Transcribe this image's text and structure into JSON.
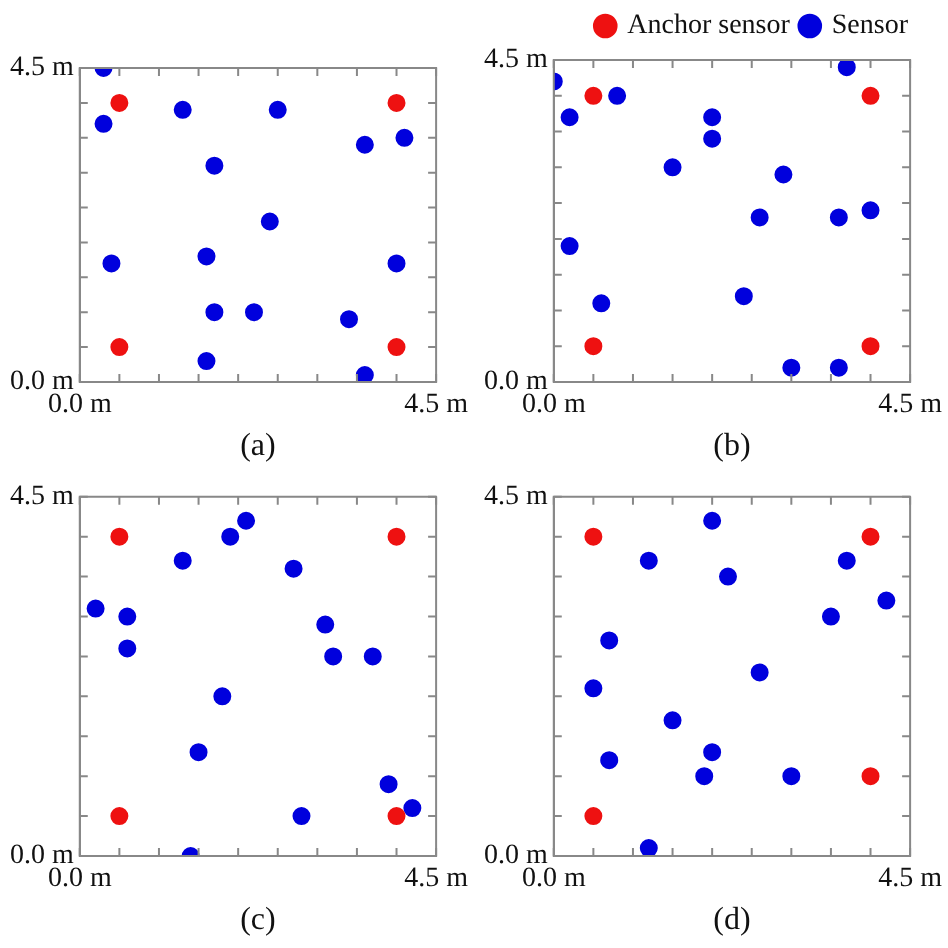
{
  "chart_data": [
    {
      "type": "scatter",
      "xlabel": "(a)",
      "xlim": [
        0,
        4.5
      ],
      "ylim": [
        0,
        4.5
      ],
      "marker": "circle",
      "xticks": [
        {
          "value": 0,
          "label": "0.0 m"
        },
        {
          "value": 0.5,
          "label": null
        },
        {
          "value": 1,
          "label": null
        },
        {
          "value": 1.5,
          "label": null
        },
        {
          "value": 2,
          "label": null
        },
        {
          "value": 2.5,
          "label": null
        },
        {
          "value": 3,
          "label": null
        },
        {
          "value": 3.5,
          "label": null
        },
        {
          "value": 4,
          "label": null
        },
        {
          "value": 4.5,
          "label": "4.5 m"
        }
      ],
      "yticks": [
        {
          "value": 0,
          "label": "0.0 m"
        },
        {
          "value": 0.5,
          "label": null
        },
        {
          "value": 1,
          "label": null
        },
        {
          "value": 1.5,
          "label": null
        },
        {
          "value": 2,
          "label": null
        },
        {
          "value": 2.5,
          "label": null
        },
        {
          "value": 3,
          "label": null
        },
        {
          "value": 3.5,
          "label": null
        },
        {
          "value": 4,
          "label": null
        },
        {
          "value": 4.5,
          "label": "4.5 m"
        }
      ],
      "series": [
        {
          "color": "#ee1111",
          "x": [
            0.5,
            4.0,
            0.5,
            4.0
          ],
          "values": [
            4.0,
            4.0,
            0.5,
            0.5
          ]
        },
        {
          "color": "#0000dd",
          "x": [
            0.3,
            0.3,
            1.3,
            2.5,
            3.6,
            4.1,
            1.7,
            2.4,
            0.4,
            1.6,
            4.0,
            1.7,
            2.2,
            3.4,
            1.6,
            3.6
          ],
          "values": [
            4.5,
            3.7,
            3.9,
            3.9,
            3.4,
            3.5,
            3.1,
            2.3,
            1.7,
            1.8,
            1.7,
            1.0,
            1.0,
            0.9,
            0.3,
            0.1
          ]
        }
      ]
    },
    {
      "type": "scatter",
      "xlabel": "(b)",
      "xlim": [
        0,
        4.5
      ],
      "ylim": [
        0,
        4.5
      ],
      "marker": "circle",
      "legend": "top right",
      "xticks": [
        {
          "value": 0,
          "label": "0.0 m"
        },
        {
          "value": 0.5,
          "label": null
        },
        {
          "value": 1,
          "label": null
        },
        {
          "value": 1.5,
          "label": null
        },
        {
          "value": 2,
          "label": null
        },
        {
          "value": 2.5,
          "label": null
        },
        {
          "value": 3,
          "label": null
        },
        {
          "value": 3.5,
          "label": null
        },
        {
          "value": 4,
          "label": null
        },
        {
          "value": 4.5,
          "label": "4.5 m"
        }
      ],
      "yticks": [
        {
          "value": 0,
          "label": "0.0 m"
        },
        {
          "value": 0.5,
          "label": null
        },
        {
          "value": 1,
          "label": null
        },
        {
          "value": 1.5,
          "label": null
        },
        {
          "value": 2,
          "label": null
        },
        {
          "value": 2.5,
          "label": null
        },
        {
          "value": 3,
          "label": null
        },
        {
          "value": 3.5,
          "label": null
        },
        {
          "value": 4,
          "label": null
        },
        {
          "value": 4.5,
          "label": "4.5 m"
        }
      ],
      "series": [
        {
          "name": "Anchor sensor",
          "color": "#ee1111",
          "x": [
            0.5,
            4.0,
            0.5,
            4.0
          ],
          "values": [
            4.0,
            4.0,
            0.5,
            0.5
          ]
        },
        {
          "name": "Sensor",
          "color": "#0000dd",
          "x": [
            0.0,
            0.2,
            0.8,
            3.7,
            2.0,
            2.0,
            1.5,
            2.9,
            2.6,
            3.6,
            4.0,
            0.2,
            0.6,
            2.4,
            3.0,
            3.6
          ],
          "values": [
            4.2,
            3.7,
            4.0,
            4.4,
            3.7,
            3.4,
            3.0,
            2.9,
            2.3,
            2.3,
            2.4,
            1.9,
            1.1,
            1.2,
            0.2,
            0.2
          ]
        }
      ]
    },
    {
      "type": "scatter",
      "xlabel": "(c)",
      "xlim": [
        0,
        4.5
      ],
      "ylim": [
        0,
        4.5
      ],
      "marker": "circle",
      "xticks": [
        {
          "value": 0,
          "label": "0.0 m"
        },
        {
          "value": 0.5,
          "label": null
        },
        {
          "value": 1,
          "label": null
        },
        {
          "value": 1.5,
          "label": null
        },
        {
          "value": 2,
          "label": null
        },
        {
          "value": 2.5,
          "label": null
        },
        {
          "value": 3,
          "label": null
        },
        {
          "value": 3.5,
          "label": null
        },
        {
          "value": 4,
          "label": null
        },
        {
          "value": 4.5,
          "label": "4.5 m"
        }
      ],
      "yticks": [
        {
          "value": 0,
          "label": "0.0 m"
        },
        {
          "value": 0.5,
          "label": null
        },
        {
          "value": 1,
          "label": null
        },
        {
          "value": 1.5,
          "label": null
        },
        {
          "value": 2,
          "label": null
        },
        {
          "value": 2.5,
          "label": null
        },
        {
          "value": 3,
          "label": null
        },
        {
          "value": 3.5,
          "label": null
        },
        {
          "value": 4,
          "label": null
        },
        {
          "value": 4.5,
          "label": "4.5 m"
        }
      ],
      "series": [
        {
          "color": "#ee1111",
          "x": [
            0.5,
            4.0,
            0.5,
            4.0
          ],
          "values": [
            4.0,
            4.0,
            0.5,
            0.5
          ]
        },
        {
          "color": "#0000dd",
          "x": [
            0.2,
            0.6,
            0.6,
            1.3,
            1.9,
            2.1,
            2.7,
            3.1,
            3.2,
            3.7,
            1.8,
            1.5,
            1.4,
            2.8,
            3.9,
            4.2
          ],
          "values": [
            3.1,
            3.0,
            2.6,
            3.7,
            4.0,
            4.2,
            3.6,
            2.9,
            2.5,
            2.5,
            2.0,
            1.3,
            0.0,
            0.5,
            0.9,
            0.6
          ]
        }
      ]
    },
    {
      "type": "scatter",
      "xlabel": "(d)",
      "xlim": [
        0,
        4.5
      ],
      "ylim": [
        0,
        4.5
      ],
      "marker": "circle",
      "xticks": [
        {
          "value": 0,
          "label": "0.0 m"
        },
        {
          "value": 0.5,
          "label": null
        },
        {
          "value": 1,
          "label": null
        },
        {
          "value": 1.5,
          "label": null
        },
        {
          "value": 2,
          "label": null
        },
        {
          "value": 2.5,
          "label": null
        },
        {
          "value": 3,
          "label": null
        },
        {
          "value": 3.5,
          "label": null
        },
        {
          "value": 4,
          "label": null
        },
        {
          "value": 4.5,
          "label": "4.5 m"
        }
      ],
      "yticks": [
        {
          "value": 0,
          "label": "0.0 m"
        },
        {
          "value": 0.5,
          "label": null
        },
        {
          "value": 1,
          "label": null
        },
        {
          "value": 1.5,
          "label": null
        },
        {
          "value": 2,
          "label": null
        },
        {
          "value": 2.5,
          "label": null
        },
        {
          "value": 3,
          "label": null
        },
        {
          "value": 3.5,
          "label": null
        },
        {
          "value": 4,
          "label": null
        },
        {
          "value": 4.5,
          "label": "4.5 m"
        }
      ],
      "series": [
        {
          "color": "#ee1111",
          "x": [
            0.5,
            4.0,
            0.5,
            4.0
          ],
          "values": [
            4.0,
            4.0,
            0.5,
            1.0
          ]
        },
        {
          "color": "#0000dd",
          "x": [
            2.0,
            1.2,
            2.2,
            3.7,
            4.2,
            3.5,
            0.7,
            2.6,
            0.5,
            1.5,
            0.7,
            2.0,
            1.9,
            3.0,
            1.2
          ],
          "values": [
            4.2,
            3.7,
            3.5,
            3.7,
            3.2,
            3.0,
            2.7,
            2.3,
            2.1,
            1.7,
            1.2,
            1.3,
            1.0,
            1.0,
            0.1
          ]
        }
      ]
    }
  ]
}
